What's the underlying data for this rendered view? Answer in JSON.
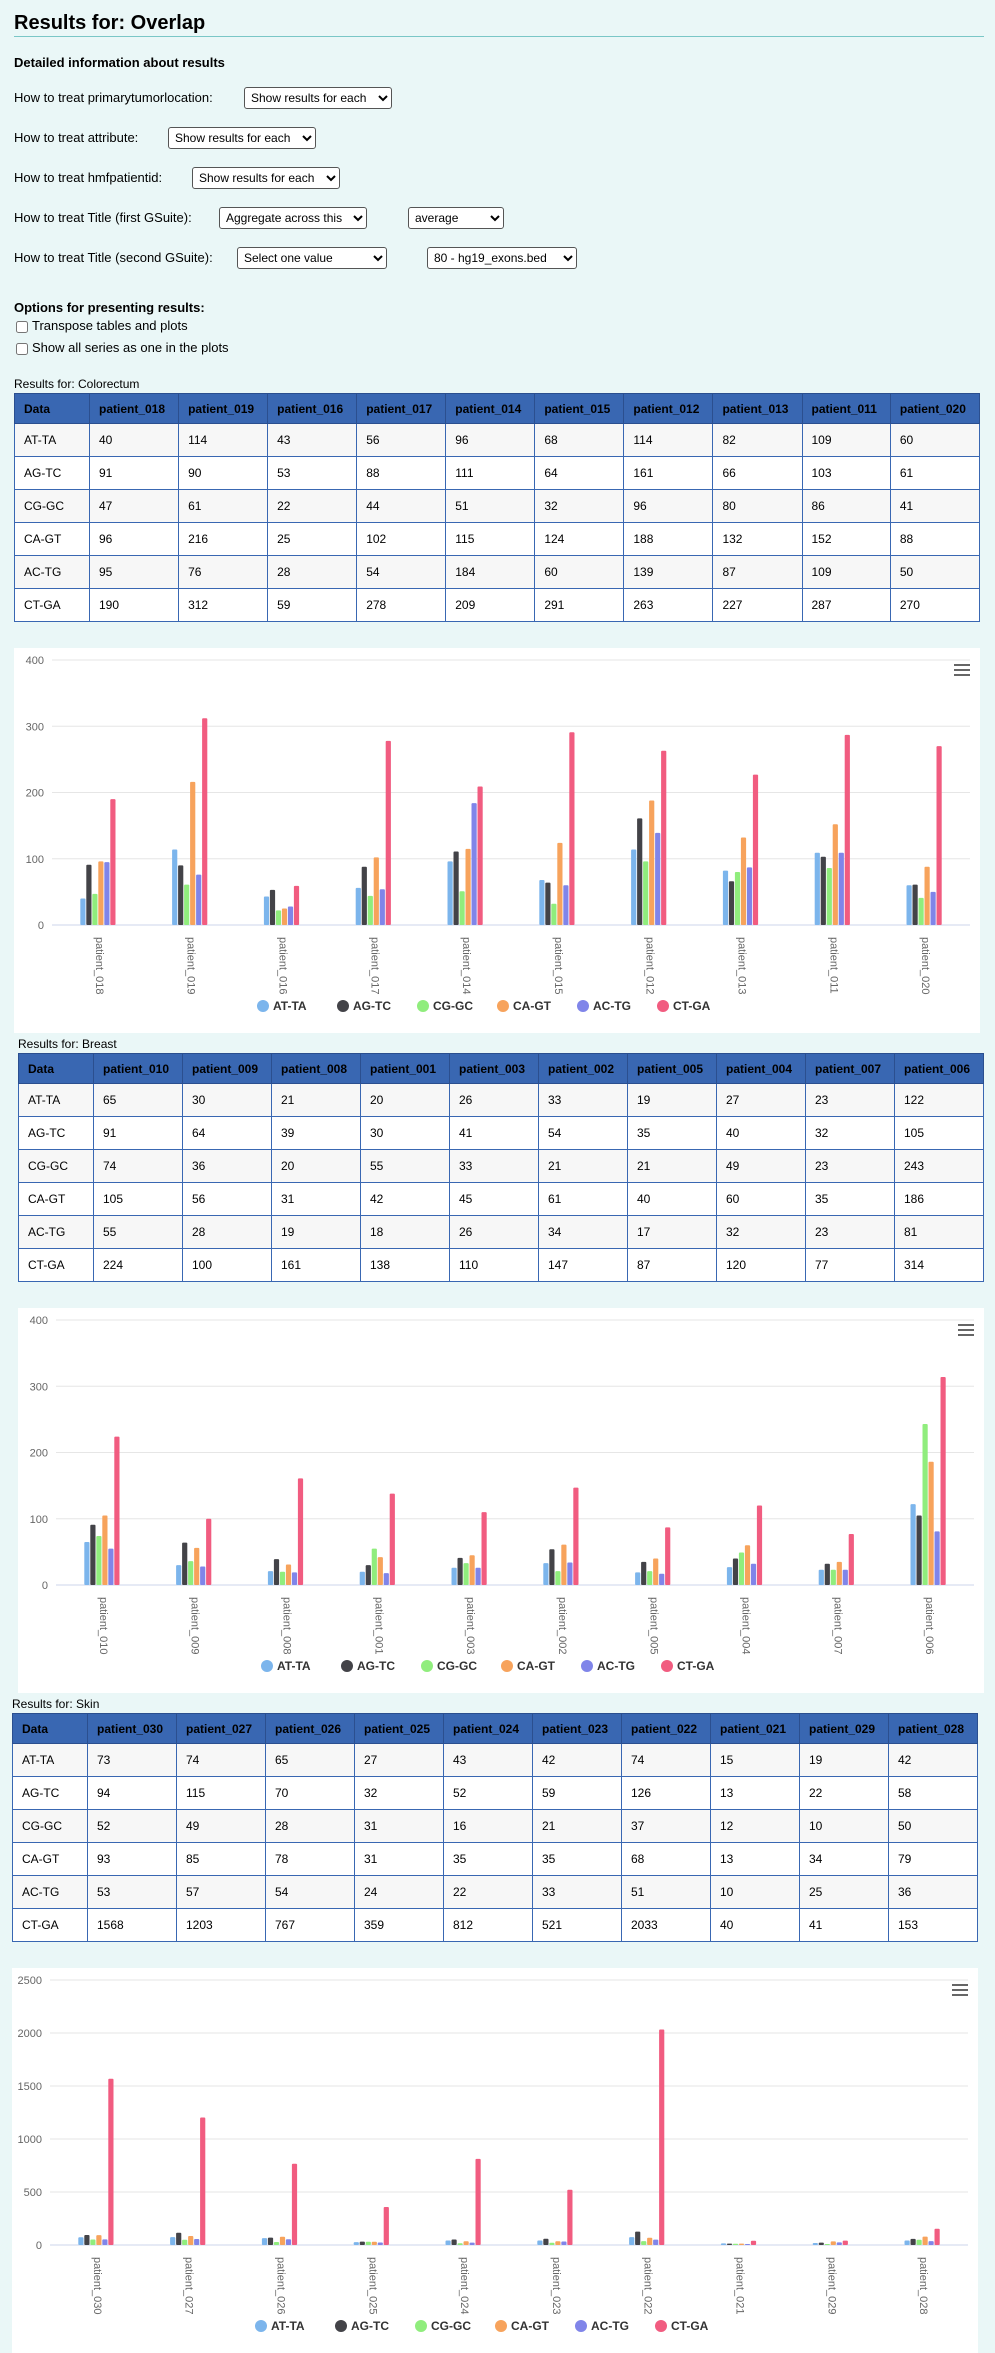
{
  "page": {
    "title": "Results for: Overlap",
    "subtitle": "Detailed information about results"
  },
  "options": [
    {
      "label": "How to treat primarytumorlocation:",
      "select": "Show results for each"
    },
    {
      "label": "How to treat attribute:",
      "select": "Show results for each"
    },
    {
      "label": "How to treat hmfpatientid:",
      "select": "Show results for each"
    },
    {
      "label": "How to treat Title (first GSuite):",
      "select": "Aggregate across this",
      "select2": "average"
    },
    {
      "label": "How to treat Title (second GSuite):",
      "select": "Select one value",
      "select2": "80 - hg19_exons.bed"
    }
  ],
  "presenting": {
    "title": "Options for presenting results:",
    "transpose": "Transpose tables and plots",
    "show_all": "Show all series as one in the plots"
  },
  "colors": {
    "header_bg": "#3967b2",
    "series": [
      "#7cb5ec",
      "#434348",
      "#90ed7d",
      "#f7a35c",
      "#8085e9",
      "#f15c80"
    ]
  },
  "series_names": [
    "AT-TA",
    "AG-TC",
    "CG-GC",
    "CA-GT",
    "AC-TG",
    "CT-GA"
  ],
  "sections": [
    {
      "label": "Results for: Colorectum",
      "header_first": "Data",
      "columns": [
        "patient_018",
        "patient_019",
        "patient_016",
        "patient_017",
        "patient_014",
        "patient_015",
        "patient_012",
        "patient_013",
        "patient_011",
        "patient_020"
      ],
      "rows": [
        {
          "name": "AT-TA",
          "values": [
            40,
            114,
            43,
            56,
            96,
            68,
            114,
            82,
            109,
            60
          ]
        },
        {
          "name": "AG-TC",
          "values": [
            91,
            90,
            53,
            88,
            111,
            64,
            161,
            66,
            103,
            61
          ]
        },
        {
          "name": "CG-GC",
          "values": [
            47,
            61,
            22,
            44,
            51,
            32,
            96,
            80,
            86,
            41
          ]
        },
        {
          "name": "CA-GT",
          "values": [
            96,
            216,
            25,
            102,
            115,
            124,
            188,
            132,
            152,
            88
          ]
        },
        {
          "name": "AC-TG",
          "values": [
            95,
            76,
            28,
            54,
            184,
            60,
            139,
            87,
            109,
            50
          ]
        },
        {
          "name": "CT-GA",
          "values": [
            190,
            312,
            59,
            278,
            209,
            291,
            263,
            227,
            287,
            270
          ]
        }
      ]
    },
    {
      "label": "Results for: Breast",
      "header_first": "Data",
      "columns": [
        "patient_010",
        "patient_009",
        "patient_008",
        "patient_001",
        "patient_003",
        "patient_002",
        "patient_005",
        "patient_004",
        "patient_007",
        "patient_006"
      ],
      "rows": [
        {
          "name": "AT-TA",
          "values": [
            65,
            30,
            21,
            20,
            26,
            33,
            19,
            27,
            23,
            122
          ]
        },
        {
          "name": "AG-TC",
          "values": [
            91,
            64,
            39,
            30,
            41,
            54,
            35,
            40,
            32,
            105
          ]
        },
        {
          "name": "CG-GC",
          "values": [
            74,
            36,
            20,
            55,
            33,
            21,
            21,
            49,
            23,
            243
          ]
        },
        {
          "name": "CA-GT",
          "values": [
            105,
            56,
            31,
            42,
            45,
            61,
            40,
            60,
            35,
            186
          ]
        },
        {
          "name": "AC-TG",
          "values": [
            55,
            28,
            19,
            18,
            26,
            34,
            17,
            32,
            23,
            81
          ]
        },
        {
          "name": "CT-GA",
          "values": [
            224,
            100,
            161,
            138,
            110,
            147,
            87,
            120,
            77,
            314
          ]
        }
      ]
    },
    {
      "label": "Results for: Skin",
      "header_first": "Data",
      "columns": [
        "patient_030",
        "patient_027",
        "patient_026",
        "patient_025",
        "patient_024",
        "patient_023",
        "patient_022",
        "patient_021",
        "patient_029",
        "patient_028"
      ],
      "rows": [
        {
          "name": "AT-TA",
          "values": [
            73,
            74,
            65,
            27,
            43,
            42,
            74,
            15,
            19,
            42
          ]
        },
        {
          "name": "AG-TC",
          "values": [
            94,
            115,
            70,
            32,
            52,
            59,
            126,
            13,
            22,
            58
          ]
        },
        {
          "name": "CG-GC",
          "values": [
            52,
            49,
            28,
            31,
            16,
            21,
            37,
            12,
            10,
            50
          ]
        },
        {
          "name": "CA-GT",
          "values": [
            93,
            85,
            78,
            31,
            35,
            35,
            68,
            13,
            34,
            79
          ]
        },
        {
          "name": "AC-TG",
          "values": [
            53,
            57,
            54,
            24,
            22,
            33,
            51,
            10,
            25,
            36
          ]
        },
        {
          "name": "CT-GA",
          "values": [
            1568,
            1203,
            767,
            359,
            812,
            521,
            2033,
            40,
            41,
            153
          ]
        }
      ]
    }
  ],
  "chart_data": [
    {
      "type": "bar",
      "title": "",
      "xlabel": "",
      "ylabel": "",
      "ylim": [
        0,
        400
      ],
      "yticks": [
        0,
        100,
        200,
        300,
        400
      ],
      "categories": [
        "patient_018",
        "patient_019",
        "patient_016",
        "patient_017",
        "patient_014",
        "patient_015",
        "patient_012",
        "patient_013",
        "patient_011",
        "patient_020"
      ],
      "series": [
        {
          "name": "AT-TA",
          "values": [
            40,
            114,
            43,
            56,
            96,
            68,
            114,
            82,
            109,
            60
          ]
        },
        {
          "name": "AG-TC",
          "values": [
            91,
            90,
            53,
            88,
            111,
            64,
            161,
            66,
            103,
            61
          ]
        },
        {
          "name": "CG-GC",
          "values": [
            47,
            61,
            22,
            44,
            51,
            32,
            96,
            80,
            86,
            41
          ]
        },
        {
          "name": "CA-GT",
          "values": [
            96,
            216,
            25,
            102,
            115,
            124,
            188,
            132,
            152,
            88
          ]
        },
        {
          "name": "AC-TG",
          "values": [
            95,
            76,
            28,
            54,
            184,
            60,
            139,
            87,
            109,
            50
          ]
        },
        {
          "name": "CT-GA",
          "values": [
            190,
            312,
            59,
            278,
            209,
            291,
            263,
            227,
            287,
            270
          ]
        }
      ]
    },
    {
      "type": "bar",
      "title": "",
      "xlabel": "",
      "ylabel": "",
      "ylim": [
        0,
        400
      ],
      "yticks": [
        0,
        100,
        200,
        300,
        400
      ],
      "categories": [
        "patient_010",
        "patient_009",
        "patient_008",
        "patient_001",
        "patient_003",
        "patient_002",
        "patient_005",
        "patient_004",
        "patient_007",
        "patient_006"
      ],
      "series": [
        {
          "name": "AT-TA",
          "values": [
            65,
            30,
            21,
            20,
            26,
            33,
            19,
            27,
            23,
            122
          ]
        },
        {
          "name": "AG-TC",
          "values": [
            91,
            64,
            39,
            30,
            41,
            54,
            35,
            40,
            32,
            105
          ]
        },
        {
          "name": "CG-GC",
          "values": [
            74,
            36,
            20,
            55,
            33,
            21,
            21,
            49,
            23,
            243
          ]
        },
        {
          "name": "CA-GT",
          "values": [
            105,
            56,
            31,
            42,
            45,
            61,
            40,
            60,
            35,
            186
          ]
        },
        {
          "name": "AC-TG",
          "values": [
            55,
            28,
            19,
            18,
            26,
            34,
            17,
            32,
            23,
            81
          ]
        },
        {
          "name": "CT-GA",
          "values": [
            224,
            100,
            161,
            138,
            110,
            147,
            87,
            120,
            77,
            314
          ]
        }
      ]
    },
    {
      "type": "bar",
      "title": "",
      "xlabel": "",
      "ylabel": "",
      "ylim": [
        0,
        2500
      ],
      "yticks": [
        0,
        500,
        1000,
        1500,
        2000,
        2500
      ],
      "categories": [
        "patient_030",
        "patient_027",
        "patient_026",
        "patient_025",
        "patient_024",
        "patient_023",
        "patient_022",
        "patient_021",
        "patient_029",
        "patient_028"
      ],
      "series": [
        {
          "name": "AT-TA",
          "values": [
            73,
            74,
            65,
            27,
            43,
            42,
            74,
            15,
            19,
            42
          ]
        },
        {
          "name": "AG-TC",
          "values": [
            94,
            115,
            70,
            32,
            52,
            59,
            126,
            13,
            22,
            58
          ]
        },
        {
          "name": "CG-GC",
          "values": [
            52,
            49,
            28,
            31,
            16,
            21,
            37,
            12,
            10,
            50
          ]
        },
        {
          "name": "CA-GT",
          "values": [
            93,
            85,
            78,
            31,
            35,
            35,
            68,
            13,
            34,
            79
          ]
        },
        {
          "name": "AC-TG",
          "values": [
            53,
            57,
            54,
            24,
            22,
            33,
            51,
            10,
            25,
            36
          ]
        },
        {
          "name": "CT-GA",
          "values": [
            1568,
            1203,
            767,
            359,
            812,
            521,
            2033,
            40,
            41,
            153
          ]
        }
      ]
    }
  ]
}
